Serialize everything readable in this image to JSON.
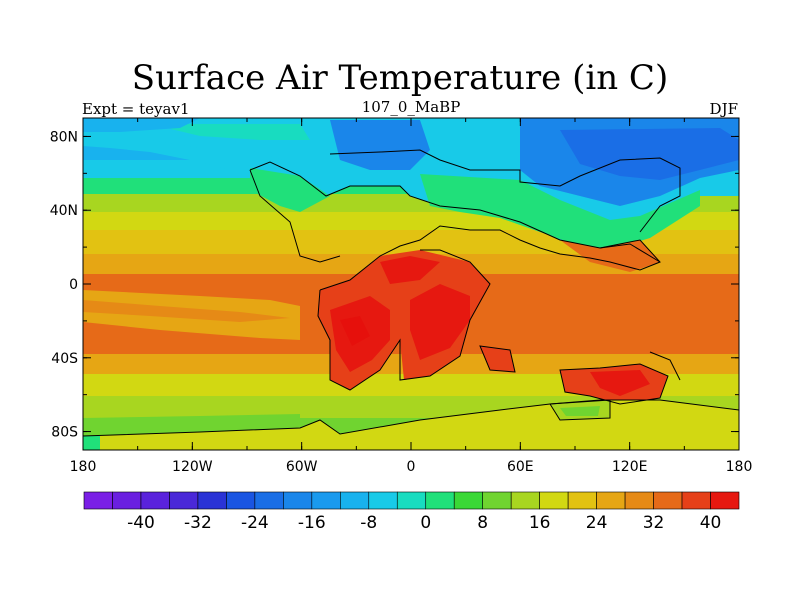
{
  "title": "Surface Air Temperature (in C)",
  "subtitle_left": "Expt = teyav1",
  "subtitle_center": "107_0_MaBP",
  "subtitle_right": "DJF",
  "lon_ticks": [
    "180",
    "120W",
    "60W",
    "0",
    "60E",
    "120E",
    "180"
  ],
  "lon_values": [
    -180,
    -120,
    -60,
    0,
    60,
    120,
    180
  ],
  "lat_ticks": [
    "80N",
    "40N",
    "0",
    "40S",
    "80S"
  ],
  "lat_values": [
    80,
    40,
    0,
    -40,
    -80
  ],
  "colorbar": {
    "labels": [
      "-40",
      "-32",
      "-24",
      "-16",
      "-8",
      "0",
      "8",
      "16",
      "24",
      "32",
      "40"
    ],
    "label_values": [
      -40,
      -32,
      -24,
      -16,
      -8,
      0,
      8,
      16,
      24,
      32,
      40
    ],
    "levels_min": -48,
    "level_step": 4,
    "colors": [
      "#7a1fe6",
      "#6a1fe0",
      "#5a22dc",
      "#4a28d8",
      "#2a33d6",
      "#1a55e2",
      "#1a6ee6",
      "#1a86ea",
      "#1a9aee",
      "#18b2ee",
      "#18cae8",
      "#18dcc0",
      "#20e07a",
      "#3ad836",
      "#70d430",
      "#a8d620",
      "#d2d812",
      "#e2c212",
      "#e6a614",
      "#e68a16",
      "#e66a18",
      "#e64018",
      "#e61810"
    ]
  },
  "colors": {
    "ocean_mid": "#e2c212",
    "ocean_warm": "#e66a18",
    "land_hot": "#e61810",
    "polar": "#1a86ea",
    "subpolar": "#18cae8"
  }
}
